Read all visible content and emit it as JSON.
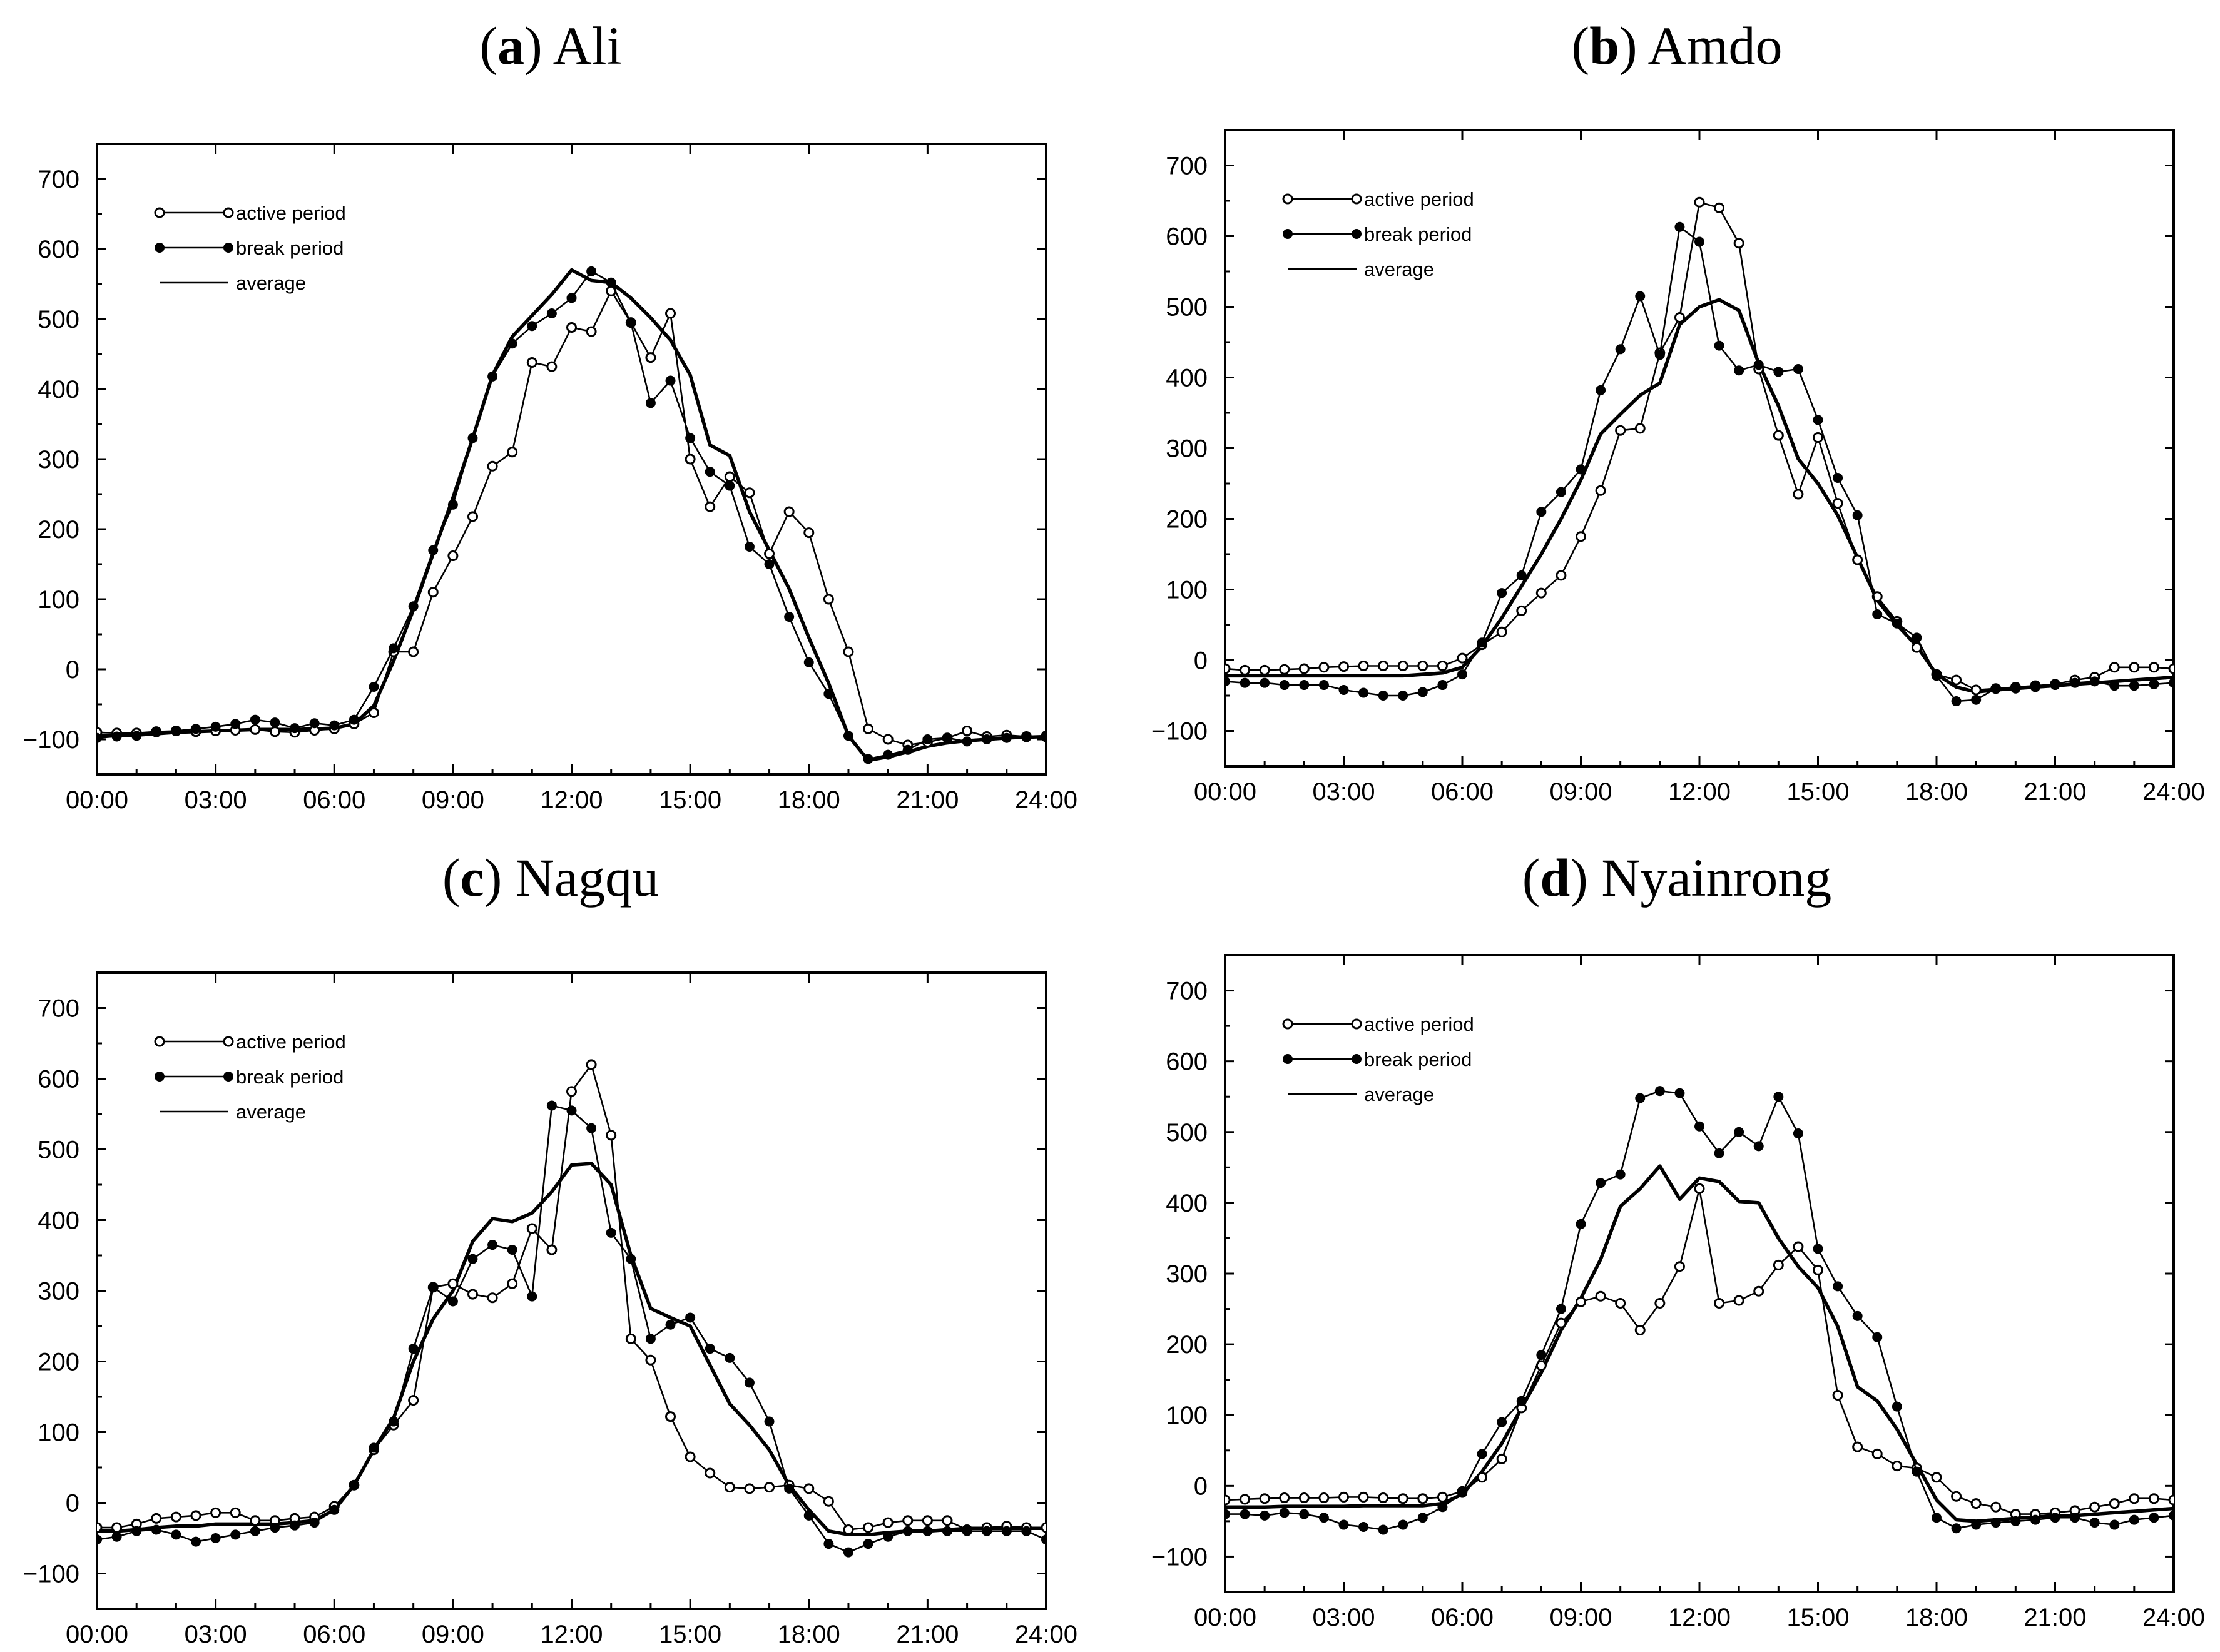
{
  "chart_data": [
    {
      "type": "line",
      "panel_letter": "a",
      "title": "Ali",
      "xlabel": "",
      "ylabel": "",
      "x_ticks": [
        "00:00",
        "03:00",
        "06:00",
        "09:00",
        "12:00",
        "15:00",
        "18:00",
        "21:00",
        "24:00"
      ],
      "y_ticks": [
        "−100",
        "0",
        "100",
        "200",
        "300",
        "400",
        "500",
        "600",
        "700"
      ],
      "xlim": [
        0,
        24
      ],
      "ylim": [
        -150,
        750
      ],
      "legend_labels": [
        "active period",
        "break period",
        "average"
      ],
      "x": [
        0,
        0.5,
        1,
        1.5,
        2,
        2.5,
        3,
        3.5,
        4,
        4.5,
        5,
        5.5,
        6,
        6.5,
        7,
        7.5,
        8,
        8.5,
        9,
        9.5,
        10,
        10.5,
        11,
        11.5,
        12,
        12.5,
        13,
        13.5,
        14,
        14.5,
        15,
        15.5,
        16,
        16.5,
        17,
        17.5,
        18,
        18.5,
        19,
        19.5,
        20,
        20.5,
        21,
        21.5,
        22,
        22.5,
        23,
        23.5,
        24
      ],
      "series": [
        {
          "name": "active period",
          "marker": "open",
          "values": [
            -90,
            -91,
            -91,
            -89,
            -88,
            -89,
            -88,
            -87,
            -86,
            -89,
            -90,
            -87,
            -85,
            -78,
            -62,
            25,
            25,
            110,
            162,
            218,
            290,
            310,
            438,
            432,
            488,
            482,
            540,
            495,
            445,
            508,
            300,
            232,
            275,
            252,
            165,
            225,
            195,
            100,
            25,
            -85,
            -100,
            -108,
            -104,
            -98,
            -88,
            -96,
            -94,
            -96,
            -95
          ]
        },
        {
          "name": "break period",
          "marker": "filled",
          "values": [
            -98,
            -96,
            -95,
            -90,
            -88,
            -85,
            -82,
            -78,
            -72,
            -76,
            -84,
            -77,
            -80,
            -72,
            -25,
            30,
            90,
            170,
            235,
            330,
            418,
            465,
            490,
            508,
            530,
            568,
            552,
            495,
            380,
            412,
            330,
            282,
            262,
            175,
            150,
            75,
            10,
            -35,
            -95,
            -128,
            -122,
            -115,
            -100,
            -98,
            -103,
            -100,
            -98,
            -97,
            -97
          ]
        },
        {
          "name": "average",
          "marker": "none",
          "values": [
            -95,
            -95,
            -94,
            -92,
            -90,
            -89,
            -88,
            -87,
            -86,
            -86,
            -86,
            -85,
            -84,
            -78,
            -52,
            12,
            85,
            165,
            245,
            330,
            420,
            475,
            505,
            535,
            570,
            555,
            552,
            530,
            502,
            470,
            420,
            320,
            305,
            225,
            170,
            115,
            45,
            -20,
            -95,
            -130,
            -125,
            -118,
            -110,
            -105,
            -102,
            -100,
            -98,
            -97,
            -96
          ]
        }
      ]
    },
    {
      "type": "line",
      "panel_letter": "b",
      "title": "Amdo",
      "xlabel": "",
      "ylabel": "",
      "x_ticks": [
        "00:00",
        "03:00",
        "06:00",
        "09:00",
        "12:00",
        "15:00",
        "18:00",
        "21:00",
        "24:00"
      ],
      "y_ticks": [
        "−100",
        "0",
        "100",
        "200",
        "300",
        "400",
        "500",
        "600",
        "700"
      ],
      "xlim": [
        0,
        24
      ],
      "ylim": [
        -150,
        750
      ],
      "legend_labels": [
        "active period",
        "break period",
        "average"
      ],
      "x": [
        0,
        0.5,
        1,
        1.5,
        2,
        2.5,
        3,
        3.5,
        4,
        4.5,
        5,
        5.5,
        6,
        6.5,
        7,
        7.5,
        8,
        8.5,
        9,
        9.5,
        10,
        10.5,
        11,
        11.5,
        12,
        12.5,
        13,
        13.5,
        14,
        14.5,
        15,
        15.5,
        16,
        16.5,
        17,
        17.5,
        18,
        18.5,
        19,
        19.5,
        20,
        20.5,
        21,
        21.5,
        22,
        22.5,
        23,
        23.5,
        24
      ],
      "series": [
        {
          "name": "active period",
          "marker": "open",
          "values": [
            -12,
            -14,
            -14,
            -13,
            -12,
            -10,
            -9,
            -8,
            -8,
            -8,
            -8,
            -8,
            3,
            22,
            40,
            70,
            95,
            120,
            175,
            240,
            325,
            328,
            435,
            485,
            648,
            640,
            590,
            412,
            318,
            235,
            315,
            222,
            142,
            90,
            55,
            18,
            -20,
            -28,
            -42,
            -40,
            -38,
            -36,
            -34,
            -28,
            -24,
            -10,
            -10,
            -10,
            -12
          ]
        },
        {
          "name": "break period",
          "marker": "filled",
          "values": [
            -30,
            -32,
            -32,
            -35,
            -35,
            -35,
            -42,
            -46,
            -50,
            -50,
            -45,
            -35,
            -20,
            25,
            95,
            120,
            210,
            238,
            270,
            382,
            440,
            515,
            432,
            613,
            592,
            445,
            410,
            418,
            408,
            412,
            340,
            258,
            205,
            65,
            52,
            32,
            -22,
            -58,
            -56,
            -40,
            -40,
            -38,
            -35,
            -32,
            -30,
            -36,
            -36,
            -34,
            -32
          ]
        },
        {
          "name": "average",
          "marker": "none",
          "values": [
            -22,
            -22,
            -22,
            -22,
            -22,
            -22,
            -22,
            -22,
            -22,
            -22,
            -20,
            -18,
            -10,
            20,
            60,
            105,
            150,
            200,
            255,
            320,
            348,
            375,
            392,
            475,
            500,
            510,
            495,
            420,
            360,
            285,
            250,
            205,
            145,
            85,
            50,
            20,
            -20,
            -38,
            -45,
            -42,
            -40,
            -38,
            -36,
            -34,
            -32,
            -30,
            -28,
            -26,
            -24
          ]
        }
      ]
    },
    {
      "type": "line",
      "panel_letter": "c",
      "title": "Nagqu",
      "xlabel": "",
      "ylabel": "",
      "x_ticks": [
        "00:00",
        "03:00",
        "06:00",
        "09:00",
        "12:00",
        "15:00",
        "18:00",
        "21:00",
        "24:00"
      ],
      "y_ticks": [
        "−100",
        "0",
        "100",
        "200",
        "300",
        "400",
        "500",
        "600",
        "700"
      ],
      "xlim": [
        0,
        24
      ],
      "ylim": [
        -150,
        750
      ],
      "legend_labels": [
        "active period",
        "break period",
        "average"
      ],
      "x": [
        0,
        0.5,
        1,
        1.5,
        2,
        2.5,
        3,
        3.5,
        4,
        4.5,
        5,
        5.5,
        6,
        6.5,
        7,
        7.5,
        8,
        8.5,
        9,
        9.5,
        10,
        10.5,
        11,
        11.5,
        12,
        12.5,
        13,
        13.5,
        14,
        14.5,
        15,
        15.5,
        16,
        16.5,
        17,
        17.5,
        18,
        18.5,
        19,
        19.5,
        20,
        20.5,
        21,
        21.5,
        22,
        22.5,
        23,
        23.5,
        24
      ],
      "series": [
        {
          "name": "active period",
          "marker": "open",
          "values": [
            -35,
            -35,
            -30,
            -22,
            -20,
            -18,
            -14,
            -14,
            -25,
            -25,
            -22,
            -20,
            -5,
            25,
            75,
            110,
            145,
            305,
            310,
            295,
            290,
            310,
            388,
            358,
            582,
            620,
            520,
            232,
            202,
            122,
            65,
            42,
            22,
            20,
            22,
            25,
            20,
            2,
            -38,
            -35,
            -28,
            -25,
            -25,
            -25,
            -38,
            -35,
            -33,
            -35,
            -35
          ]
        },
        {
          "name": "break period",
          "marker": "filled",
          "values": [
            -52,
            -48,
            -40,
            -38,
            -45,
            -55,
            -50,
            -45,
            -40,
            -35,
            -32,
            -28,
            -10,
            25,
            78,
            115,
            218,
            305,
            285,
            345,
            365,
            358,
            292,
            562,
            555,
            530,
            382,
            345,
            232,
            252,
            262,
            218,
            205,
            170,
            115,
            20,
            -18,
            -58,
            -70,
            -58,
            -48,
            -40,
            -40,
            -40,
            -40,
            -40,
            -40,
            -40,
            -52
          ]
        },
        {
          "name": "average",
          "marker": "none",
          "values": [
            -40,
            -40,
            -38,
            -35,
            -33,
            -33,
            -30,
            -30,
            -30,
            -30,
            -28,
            -25,
            -10,
            25,
            75,
            120,
            200,
            260,
            300,
            370,
            402,
            398,
            410,
            440,
            478,
            480,
            450,
            350,
            275,
            262,
            250,
            195,
            140,
            110,
            75,
            25,
            -10,
            -40,
            -45,
            -45,
            -42,
            -40,
            -40,
            -38,
            -36,
            -36,
            -36,
            -36,
            -36
          ]
        }
      ]
    },
    {
      "type": "line",
      "panel_letter": "d",
      "title": "Nyainrong",
      "xlabel": "",
      "ylabel": "",
      "x_ticks": [
        "00:00",
        "03:00",
        "06:00",
        "09:00",
        "12:00",
        "15:00",
        "18:00",
        "21:00",
        "24:00"
      ],
      "y_ticks": [
        "−100",
        "0",
        "100",
        "200",
        "300",
        "400",
        "500",
        "600",
        "700"
      ],
      "xlim": [
        0,
        24
      ],
      "ylim": [
        -150,
        750
      ],
      "legend_labels": [
        "active period",
        "break period",
        "average"
      ],
      "x": [
        0,
        0.5,
        1,
        1.5,
        2,
        2.5,
        3,
        3.5,
        4,
        4.5,
        5,
        5.5,
        6,
        6.5,
        7,
        7.5,
        8,
        8.5,
        9,
        9.5,
        10,
        10.5,
        11,
        11.5,
        12,
        12.5,
        13,
        13.5,
        14,
        14.5,
        15,
        15.5,
        16,
        16.5,
        17,
        17.5,
        18,
        18.5,
        19,
        19.5,
        20,
        20.5,
        21,
        21.5,
        22,
        22.5,
        23,
        23.5,
        24
      ],
      "series": [
        {
          "name": "active period",
          "marker": "open",
          "values": [
            -20,
            -19,
            -18,
            -17,
            -17,
            -17,
            -16,
            -16,
            -17,
            -18,
            -18,
            -16,
            -8,
            12,
            38,
            110,
            170,
            230,
            260,
            268,
            258,
            220,
            258,
            310,
            420,
            258,
            262,
            275,
            312,
            338,
            305,
            128,
            55,
            45,
            28,
            25,
            12,
            -15,
            -25,
            -30,
            -40,
            -40,
            -38,
            -35,
            -30,
            -25,
            -18,
            -18,
            -20
          ]
        },
        {
          "name": "break period",
          "marker": "filled",
          "values": [
            -40,
            -40,
            -42,
            -38,
            -40,
            -45,
            -55,
            -58,
            -62,
            -55,
            -45,
            -30,
            -10,
            45,
            90,
            120,
            185,
            250,
            370,
            428,
            440,
            548,
            558,
            555,
            508,
            470,
            500,
            480,
            550,
            498,
            335,
            282,
            240,
            210,
            112,
            20,
            -45,
            -60,
            -55,
            -52,
            -50,
            -48,
            -45,
            -45,
            -52,
            -55,
            -48,
            -45,
            -42
          ]
        },
        {
          "name": "average",
          "marker": "none",
          "values": [
            -30,
            -30,
            -30,
            -29,
            -29,
            -29,
            -29,
            -28,
            -28,
            -28,
            -28,
            -25,
            -12,
            20,
            60,
            110,
            160,
            220,
            265,
            320,
            395,
            420,
            452,
            405,
            435,
            430,
            402,
            400,
            350,
            310,
            280,
            225,
            140,
            120,
            80,
            30,
            -20,
            -48,
            -50,
            -48,
            -46,
            -44,
            -42,
            -42,
            -40,
            -38,
            -36,
            -34,
            -32
          ]
        }
      ]
    }
  ]
}
